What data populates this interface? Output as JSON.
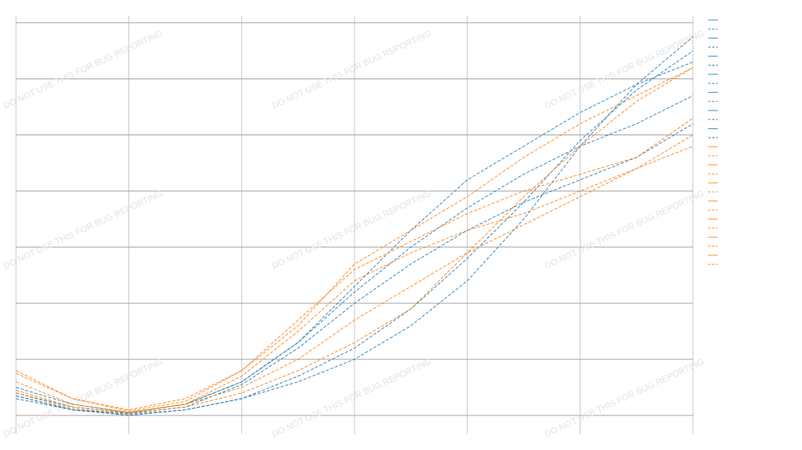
{
  "chart_data": {
    "type": "line",
    "watermark": "DO NOT USE THIS FOR BUG REPORTING",
    "x": [
      0,
      0.5,
      1,
      1.5,
      2,
      2.5,
      3,
      3.5,
      4,
      4.5,
      5,
      5.5,
      6
    ],
    "xlim": [
      0,
      6
    ],
    "xticks": [
      0,
      1,
      2,
      3,
      4,
      5,
      6
    ],
    "ylim": [
      -0.33,
      7.12
    ],
    "yticks": [
      0,
      1,
      2,
      3,
      4,
      5,
      6,
      7
    ],
    "grid": true,
    "series": [
      {
        "color": "#1f77b4",
        "values": [
          0.35,
          0.1,
          0.02,
          0.1,
          0.3,
          0.6,
          1.0,
          1.6,
          2.4,
          3.5,
          4.8,
          5.9,
          6.75
        ]
      },
      {
        "color": "#1f77b4",
        "values": [
          0.3,
          0.1,
          0.0,
          0.1,
          0.3,
          0.7,
          1.2,
          1.9,
          2.8,
          3.8,
          4.9,
          5.8,
          6.5
        ]
      },
      {
        "color": "#1f77b4",
        "values": [
          0.5,
          0.2,
          0.05,
          0.2,
          0.6,
          1.3,
          2.3,
          3.3,
          4.2,
          4.8,
          5.4,
          5.9,
          6.3
        ]
      },
      {
        "color": "#1f77b4",
        "values": [
          0.4,
          0.15,
          0.05,
          0.2,
          0.6,
          1.3,
          2.2,
          3.0,
          3.7,
          4.3,
          4.8,
          5.2,
          5.7
        ]
      },
      {
        "color": "#1f77b4",
        "values": [
          0.35,
          0.1,
          0.04,
          0.15,
          0.55,
          1.2,
          2.0,
          2.7,
          3.3,
          3.8,
          4.2,
          4.6,
          5.2
        ]
      },
      {
        "color": "#ff7f0e",
        "values": [
          0.8,
          0.3,
          0.08,
          0.25,
          0.8,
          1.6,
          2.7,
          3.3,
          3.9,
          4.6,
          5.2,
          5.7,
          6.2
        ]
      },
      {
        "color": "#ff7f0e",
        "values": [
          0.75,
          0.3,
          0.1,
          0.3,
          0.8,
          1.7,
          2.6,
          3.1,
          3.6,
          4.0,
          4.3,
          4.6,
          5.3
        ]
      },
      {
        "color": "#ff7f0e",
        "values": [
          0.4,
          0.12,
          0.03,
          0.15,
          0.4,
          0.8,
          1.3,
          1.9,
          2.9,
          3.9,
          4.8,
          5.6,
          6.2
        ]
      },
      {
        "color": "#ff7f0e",
        "values": [
          0.6,
          0.2,
          0.06,
          0.2,
          0.7,
          1.5,
          2.4,
          2.9,
          3.3,
          3.6,
          4.0,
          4.4,
          4.8
        ]
      },
      {
        "color": "#ff7f0e",
        "values": [
          0.45,
          0.15,
          0.05,
          0.2,
          0.5,
          1.0,
          1.7,
          2.3,
          2.9,
          3.4,
          3.9,
          4.4,
          5.0
        ]
      }
    ]
  }
}
